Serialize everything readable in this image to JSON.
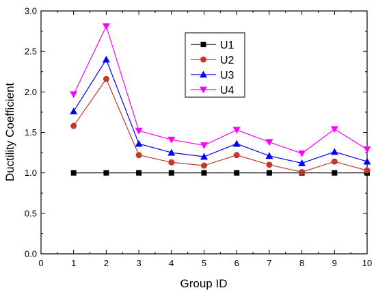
{
  "chart_data": {
    "type": "line",
    "title": "",
    "xlabel": "Group ID",
    "ylabel": "Ductility Coefficient",
    "xlim": [
      0,
      10
    ],
    "ylim": [
      0,
      3.0
    ],
    "x_ticks": [
      "0",
      "1",
      "2",
      "3",
      "4",
      "5",
      "6",
      "7",
      "8",
      "9",
      "10"
    ],
    "y_ticks": [
      "0.0",
      "0.5",
      "1.0",
      "1.5",
      "2.0",
      "2.5",
      "3.0"
    ],
    "grid": false,
    "legend_position": "top-right",
    "x": [
      1,
      2,
      3,
      4,
      5,
      6,
      7,
      8,
      9,
      10
    ],
    "series": [
      {
        "name": "U1",
        "marker": "square",
        "color": "#000000",
        "values": [
          1.0,
          1.0,
          1.0,
          1.0,
          1.0,
          1.0,
          1.0,
          1.0,
          1.0,
          1.0
        ]
      },
      {
        "name": "U2",
        "marker": "circle",
        "color": "#c0392b",
        "values": [
          1.58,
          2.16,
          1.22,
          1.13,
          1.09,
          1.22,
          1.1,
          1.01,
          1.14,
          1.03
        ]
      },
      {
        "name": "U3",
        "marker": "triangle-up",
        "color": "#0000ff",
        "values": [
          1.76,
          2.4,
          1.36,
          1.25,
          1.2,
          1.36,
          1.21,
          1.12,
          1.26,
          1.14
        ]
      },
      {
        "name": "U4",
        "marker": "triangle-down",
        "color": "#ff00ff",
        "values": [
          1.97,
          2.81,
          1.52,
          1.41,
          1.34,
          1.53,
          1.38,
          1.24,
          1.54,
          1.29
        ]
      }
    ]
  }
}
